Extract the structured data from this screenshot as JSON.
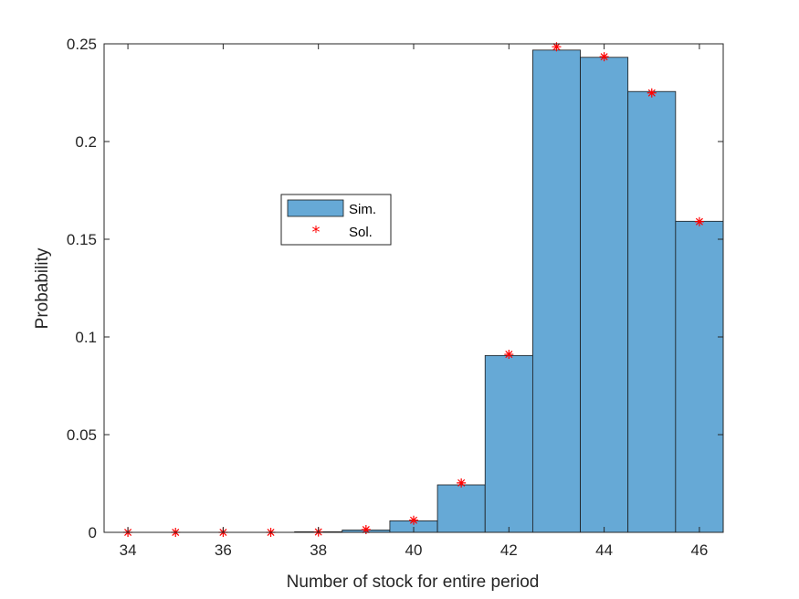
{
  "chart_data": {
    "type": "bar",
    "title": "",
    "xlabel": "Number of stock for entire period",
    "ylabel": "Probability",
    "xlim": [
      33.5,
      46.5
    ],
    "ylim": [
      0,
      0.25
    ],
    "xticks": [
      34,
      36,
      38,
      40,
      42,
      44,
      46
    ],
    "yticks": [
      0,
      0.05,
      0.1,
      0.15,
      0.2,
      0.25
    ],
    "xtick_labels": [
      "34",
      "36",
      "38",
      "40",
      "42",
      "44",
      "46"
    ],
    "ytick_labels": [
      "0",
      "0.05",
      "0.1",
      "0.15",
      "0.2",
      "0.25"
    ],
    "grid": false,
    "legend_position": "center-left",
    "categories": [
      34,
      35,
      36,
      37,
      38,
      39,
      40,
      41,
      42,
      43,
      44,
      45,
      46
    ],
    "series": [
      {
        "name": "Sim.",
        "kind": "histogram",
        "color": "#66a9d6",
        "edge_color": "#1a1a1a",
        "values": [
          0.0,
          0.0,
          0.0,
          0.0,
          0.0003,
          0.0012,
          0.0059,
          0.0243,
          0.0905,
          0.2468,
          0.2431,
          0.2256,
          0.1592
        ]
      },
      {
        "name": "Sol.",
        "kind": "marker",
        "marker": "*",
        "color": "#ff0000",
        "values": [
          0.0,
          0.0,
          0.0,
          0.0,
          0.0002,
          0.0014,
          0.0062,
          0.0253,
          0.0911,
          0.2485,
          0.2434,
          0.2249,
          0.159
        ]
      }
    ],
    "legend": [
      "Sim.",
      "Sol."
    ]
  }
}
